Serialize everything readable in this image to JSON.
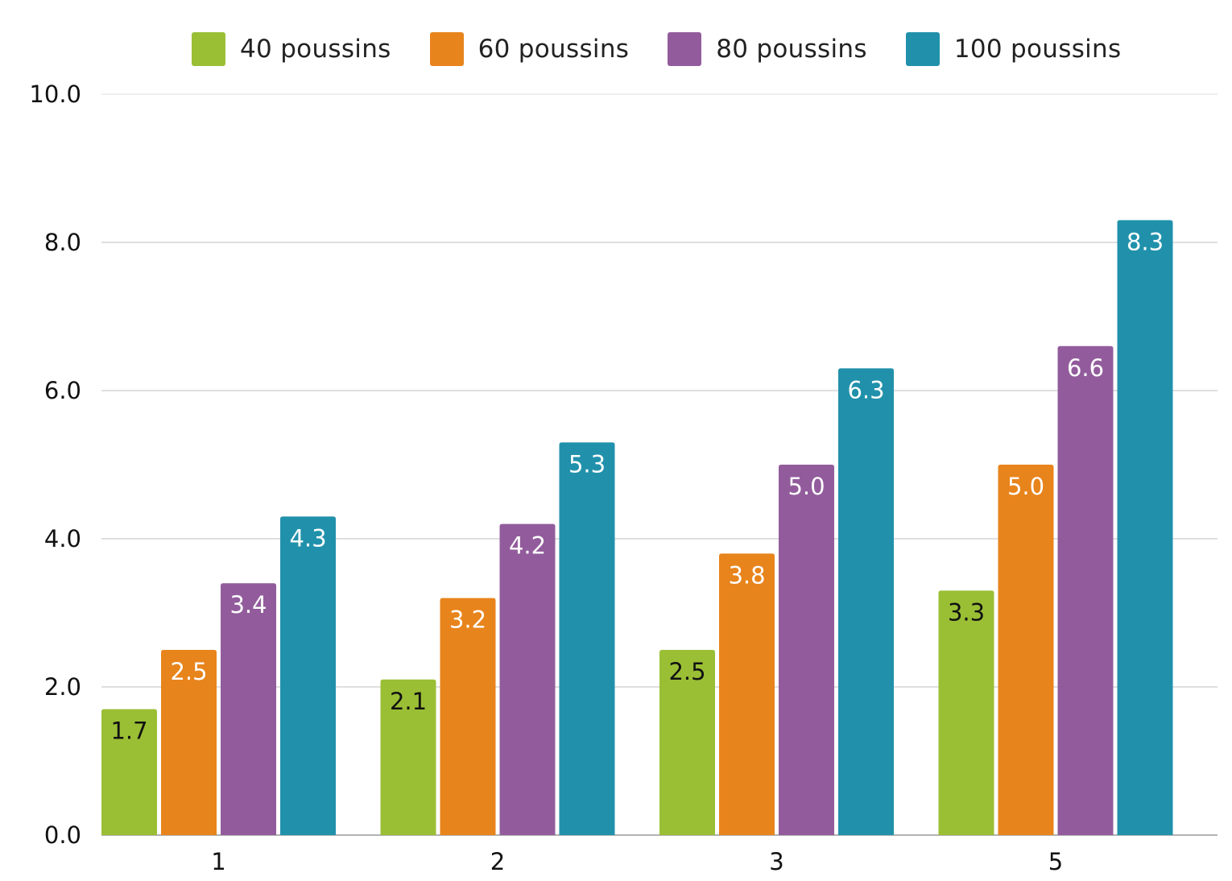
{
  "chart_data": {
    "type": "bar",
    "categories": [
      "1",
      "2",
      "3",
      "5"
    ],
    "series": [
      {
        "name": "40 poussins",
        "color": "#9abf35",
        "label_color": "#111111",
        "values": [
          1.7,
          2.1,
          2.5,
          3.3
        ]
      },
      {
        "name": "60 poussins",
        "color": "#e8841c",
        "label_color": "#ffffff",
        "values": [
          2.5,
          3.2,
          3.8,
          5.0
        ]
      },
      {
        "name": "80 poussins",
        "color": "#925c9c",
        "label_color": "#ffffff",
        "values": [
          3.4,
          4.2,
          5.0,
          6.6
        ]
      },
      {
        "name": "100 poussins",
        "color": "#2191ab",
        "label_color": "#ffffff",
        "values": [
          4.3,
          5.3,
          6.3,
          8.3
        ]
      }
    ],
    "data_labels": [
      [
        "1.7",
        "2.1",
        "2.5",
        "3.3"
      ],
      [
        "2.5",
        "3.2",
        "3.8",
        "5.0"
      ],
      [
        "3.4",
        "4.2",
        "5.0",
        "6.6"
      ],
      [
        "4.3",
        "5.3",
        "6.3",
        "8.3"
      ]
    ],
    "yticks": [
      "0.0",
      "2.0",
      "4.0",
      "6.0",
      "8.0",
      "10.0"
    ],
    "ylim": [
      0,
      10
    ],
    "title": "",
    "xlabel": "",
    "ylabel": "",
    "grid": true,
    "legend_position": "top"
  }
}
